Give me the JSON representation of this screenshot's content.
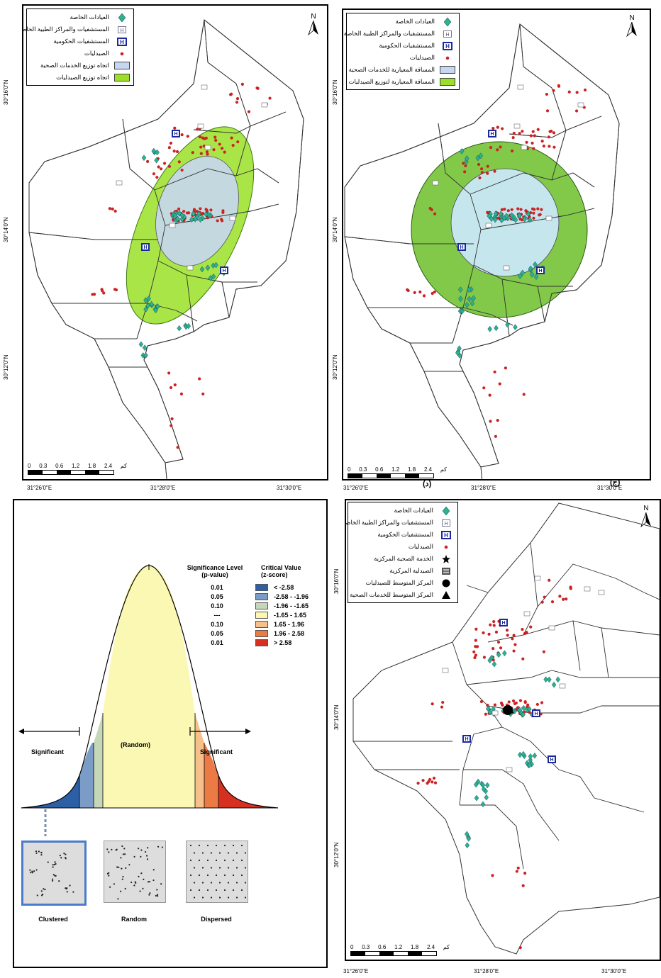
{
  "colors": {
    "clinic": "#2bb38a",
    "pharmacy": "#cc2222",
    "hospital": "#1a2a9c",
    "ellipse_outer": "#9be028",
    "ellipse_inner": "#c6d7f0",
    "circle_outer": "#6cbf2a",
    "circle_inner": "#c9e8f7"
  },
  "legend_a": {
    "items": [
      {
        "icon": "clinic-diamond-icon",
        "label": "العيادات الخاصة"
      },
      {
        "icon": "private-hospital-icon",
        "label": "المستشفيات والمراكز الطبية الخاصة"
      },
      {
        "icon": "government-hospital-icon",
        "label": "المستشفيات الحكومية"
      },
      {
        "icon": "pharmacy-dot-icon",
        "label": "الصيدليات"
      },
      {
        "icon": "blue-swatch-icon",
        "label": "اتجاه توزيع الخدمات الصحية"
      },
      {
        "icon": "green-swatch-icon",
        "label": "اتجاه توزيع الصيدليات"
      }
    ]
  },
  "legend_b": {
    "items": [
      {
        "icon": "clinic-diamond-icon",
        "label": "العيادات الخاصة"
      },
      {
        "icon": "private-hospital-icon",
        "label": "المستشفيات والمراكز الطبية الخاصة"
      },
      {
        "icon": "government-hospital-icon",
        "label": "المستشفيات الحكومية"
      },
      {
        "icon": "pharmacy-dot-icon",
        "label": "الصيدليات"
      },
      {
        "icon": "blue-swatch-icon",
        "label": "المسافة المعيارية للخدمات الصحية"
      },
      {
        "icon": "green-swatch-icon",
        "label": "المسافة المعيارية لتوزيع الصيدليات"
      }
    ]
  },
  "legend_d": {
    "items": [
      {
        "icon": "clinic-diamond-icon",
        "label": "العيادات الخاصة"
      },
      {
        "icon": "private-hospital-icon",
        "label": "المستشفيات والمراكز الطبية الخاصة"
      },
      {
        "icon": "government-hospital-icon",
        "label": "المستشفيات الحكومية"
      },
      {
        "icon": "pharmacy-dot-icon",
        "label": "الصيدليات"
      },
      {
        "icon": "star-icon",
        "label": "الخدمة الصحية المركزية"
      },
      {
        "icon": "central-pharmacy-icon",
        "label": "الصيدلية المركزية"
      },
      {
        "icon": "black-circle-icon",
        "label": "المركز المتوسط للصيدليات"
      },
      {
        "icon": "black-triangle-icon",
        "label": "المركز المتوسط للخدمات الصحية"
      }
    ]
  },
  "axes": {
    "lon": [
      "31°26'0\"E",
      "31°28'0\"E",
      "31°30'0\"E"
    ],
    "lat": [
      "30°16'0\"N",
      "30°14'0\"N",
      "30°12'0\"N"
    ]
  },
  "scale": {
    "numbers": [
      "0",
      "0.3",
      "0.6",
      "1.2",
      "1.8",
      "2.4"
    ],
    "unit": "كم"
  },
  "north": "N",
  "panel_labels": {
    "b": "(د)",
    "c": "(ج)"
  },
  "significance": {
    "header_p": "Significance Level\n(p-value)",
    "header_z": "Critical Value\n(z-score)",
    "rows": [
      {
        "p": "0.01",
        "z": "< -2.58",
        "color": "#2c5fa6"
      },
      {
        "p": "0.05",
        "z": "-2.58 - -1.96",
        "color": "#7a9cc6"
      },
      {
        "p": "0.10",
        "z": "-1.96 - -1.65",
        "color": "#c6d6b8"
      },
      {
        "p": "---",
        "z": "-1.65 - 1.65",
        "color": "#fbf8b4"
      },
      {
        "p": "0.10",
        "z": "1.65 - 1.96",
        "color": "#f7c08a"
      },
      {
        "p": "0.05",
        "z": "1.96 - 2.58",
        "color": "#ec7a45"
      },
      {
        "p": "0.01",
        "z": "> 2.58",
        "color": "#d63020"
      }
    ],
    "random_label": "(Random)",
    "sig_left": "Significant",
    "sig_right": "Significant",
    "patterns": [
      "Clustered",
      "Random",
      "Dispersed"
    ]
  }
}
